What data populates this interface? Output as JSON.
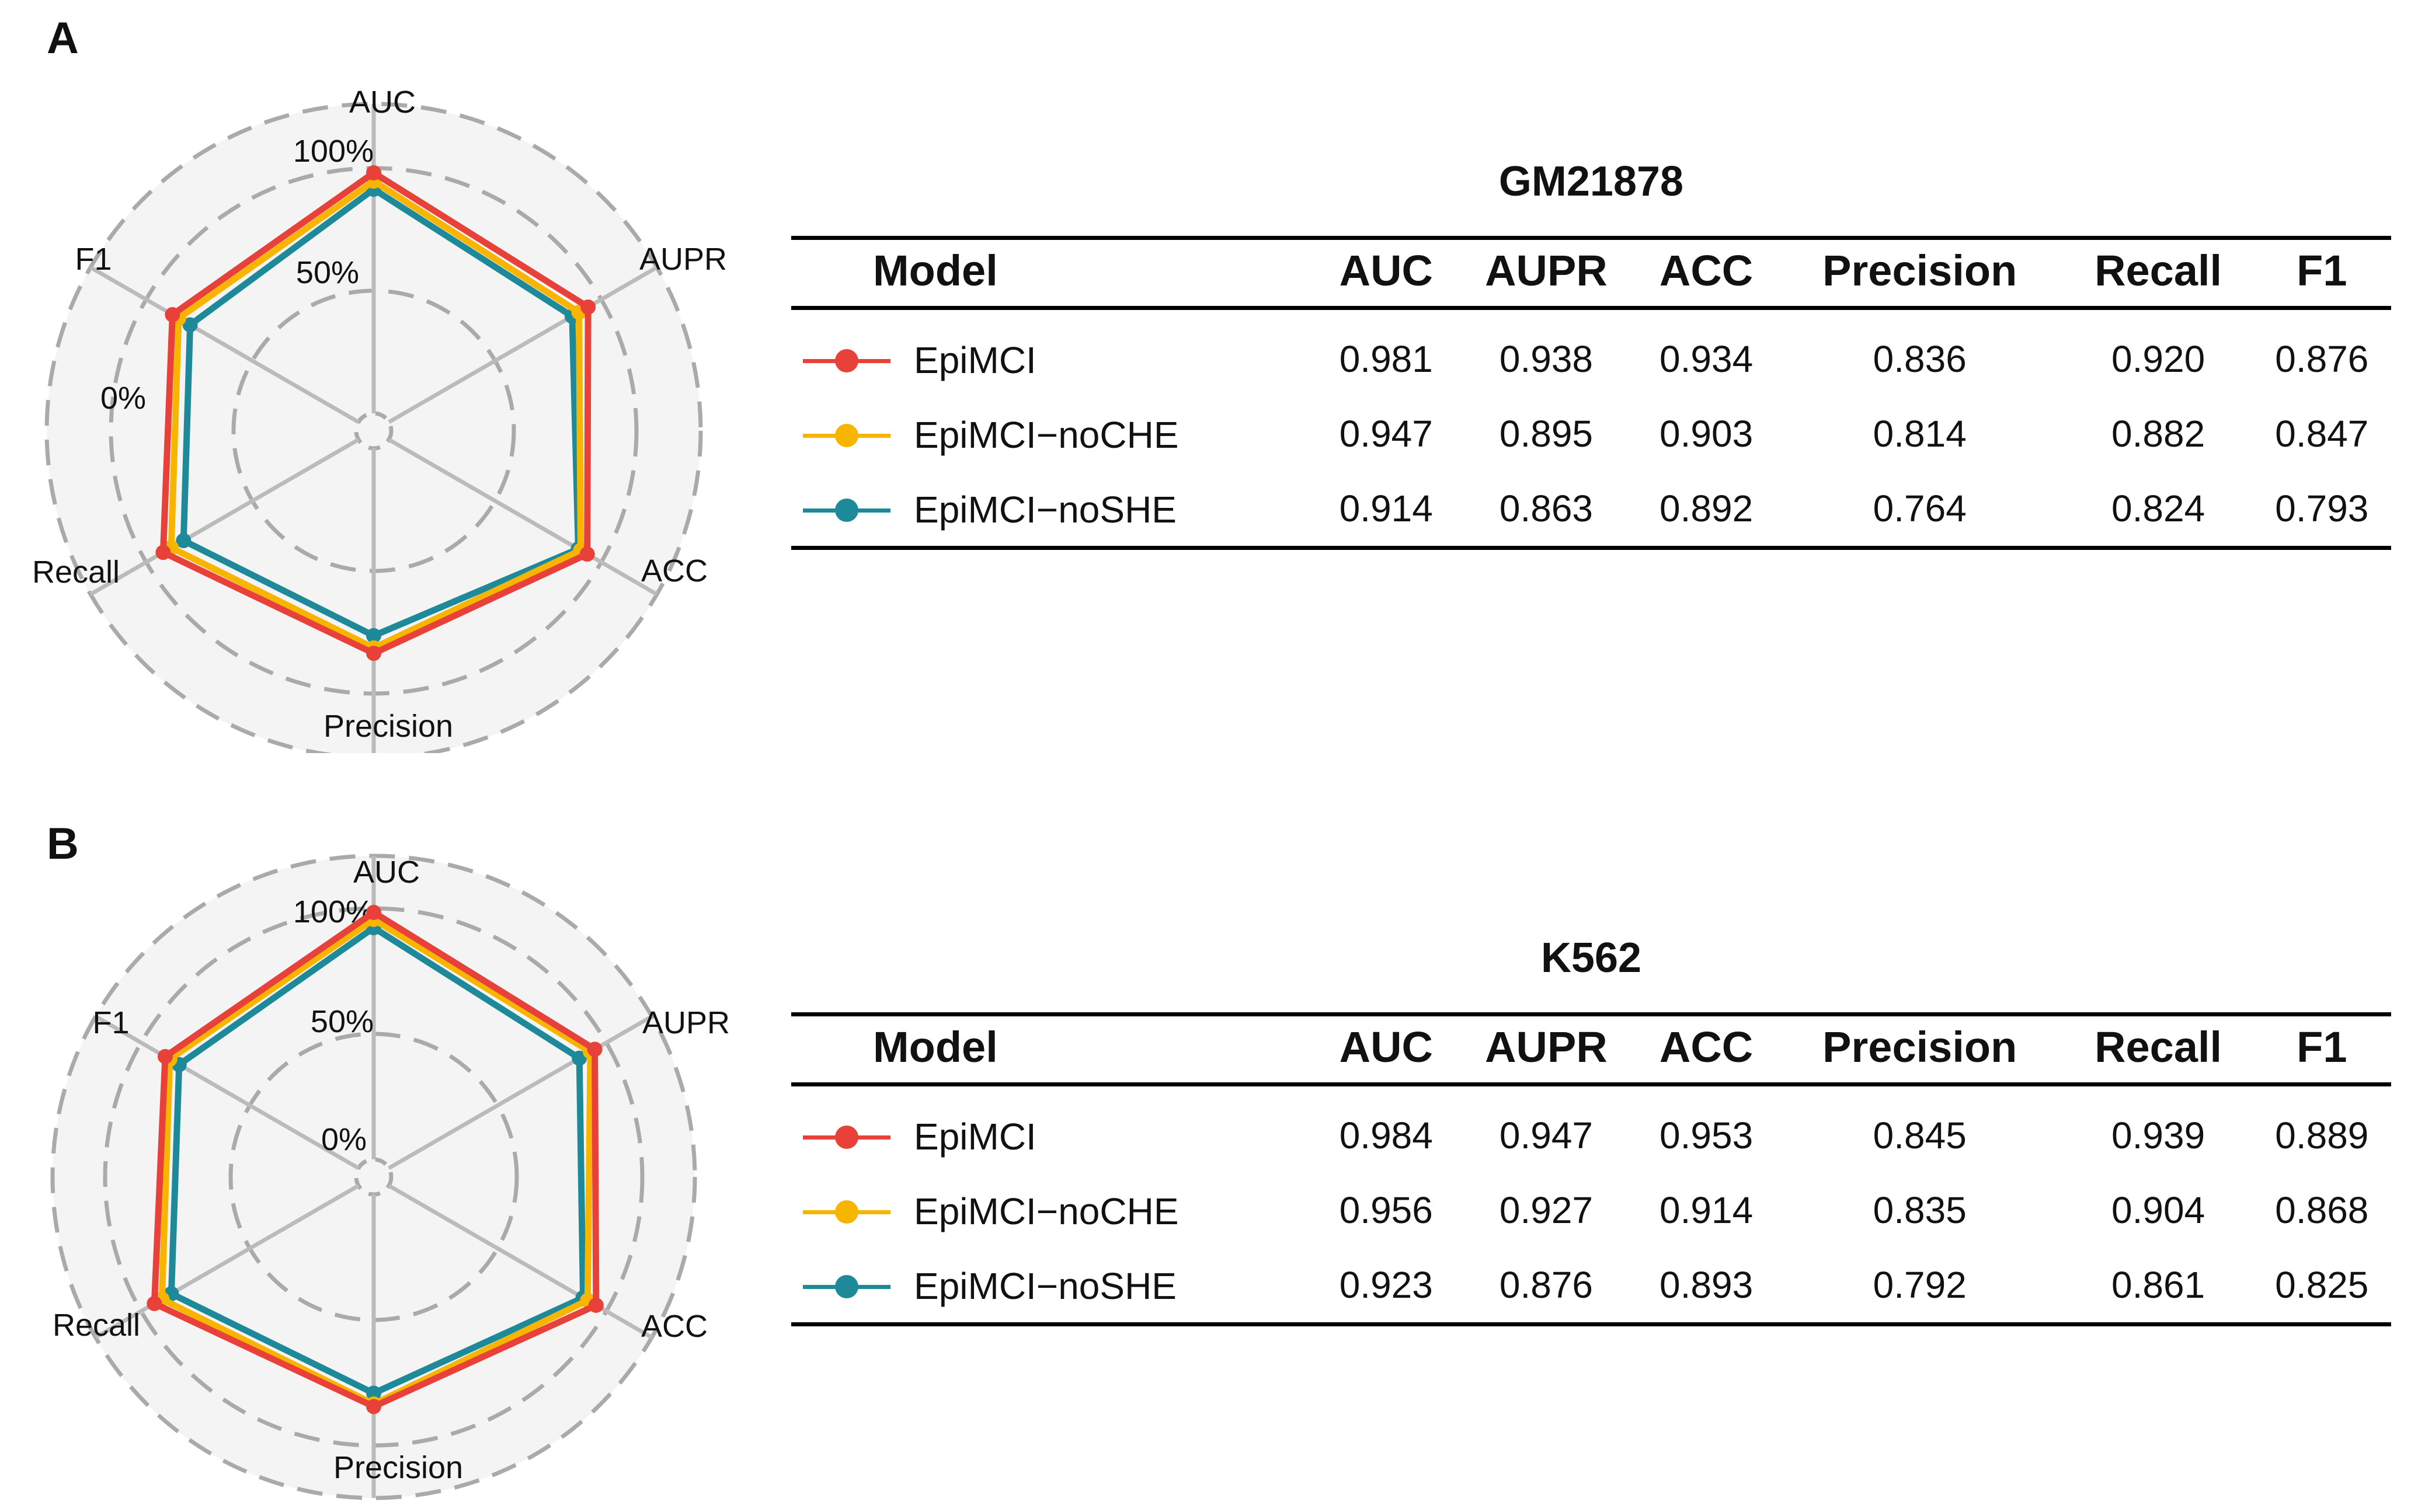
{
  "colors": {
    "EpiMCI": "#e8413a",
    "EpiMCI-noCHE": "#f7b500",
    "EpiMCI-noSHE": "#1e8a99",
    "grid": "#bbbbbb",
    "background": "#f4f4f4"
  },
  "chart_data": [
    {
      "type": "radar",
      "panel_label": "A",
      "title": "GM21878",
      "axes": [
        "AUC",
        "AUPR",
        "ACC",
        "Precision",
        "Recall",
        "F1"
      ],
      "radial_ticks": [
        "0%",
        "50%",
        "100%"
      ],
      "rlim": [
        0,
        1
      ],
      "table_headers": [
        "Model",
        "AUC",
        "AUPR",
        "ACC",
        "Precision",
        "Recall",
        "F1"
      ],
      "series": [
        {
          "name": "EpiMCI",
          "color_key": "EpiMCI",
          "values": [
            0.981,
            0.938,
            0.934,
            0.836,
            0.92,
            0.876
          ],
          "display": [
            "0.981",
            "0.938",
            "0.934",
            "0.836",
            "0.920",
            "0.876"
          ]
        },
        {
          "name": "EpiMCI−noCHE",
          "color_key": "EpiMCI-noCHE",
          "values": [
            0.947,
            0.895,
            0.903,
            0.814,
            0.882,
            0.847
          ],
          "display": [
            "0.947",
            "0.895",
            "0.903",
            "0.814",
            "0.882",
            "0.847"
          ]
        },
        {
          "name": "EpiMCI−noSHE",
          "color_key": "EpiMCI-noSHE",
          "values": [
            0.914,
            0.863,
            0.892,
            0.764,
            0.824,
            0.793
          ],
          "display": [
            "0.914",
            "0.863",
            "0.892",
            "0.764",
            "0.824",
            "0.793"
          ]
        }
      ]
    },
    {
      "type": "radar",
      "panel_label": "B",
      "title": "K562",
      "axes": [
        "AUC",
        "AUPR",
        "ACC",
        "Precision",
        "Recall",
        "F1"
      ],
      "radial_ticks": [
        "0%",
        "50%",
        "100%"
      ],
      "rlim": [
        0,
        1
      ],
      "table_headers": [
        "Model",
        "AUC",
        "AUPR",
        "ACC",
        "Precision",
        "Recall",
        "F1"
      ],
      "series": [
        {
          "name": "EpiMCI",
          "color_key": "EpiMCI",
          "values": [
            0.984,
            0.947,
            0.953,
            0.845,
            0.939,
            0.889
          ],
          "display": [
            "0.984",
            "0.947",
            "0.953",
            "0.845",
            "0.939",
            "0.889"
          ]
        },
        {
          "name": "EpiMCI−noCHE",
          "color_key": "EpiMCI-noCHE",
          "values": [
            0.956,
            0.927,
            0.914,
            0.835,
            0.904,
            0.868
          ],
          "display": [
            "0.956",
            "0.927",
            "0.914",
            "0.835",
            "0.904",
            "0.868"
          ]
        },
        {
          "name": "EpiMCI−noSHE",
          "color_key": "EpiMCI-noSHE",
          "values": [
            0.923,
            0.876,
            0.893,
            0.792,
            0.861,
            0.825
          ],
          "display": [
            "0.923",
            "0.876",
            "0.893",
            "0.792",
            "0.861",
            "0.825"
          ]
        }
      ]
    }
  ]
}
